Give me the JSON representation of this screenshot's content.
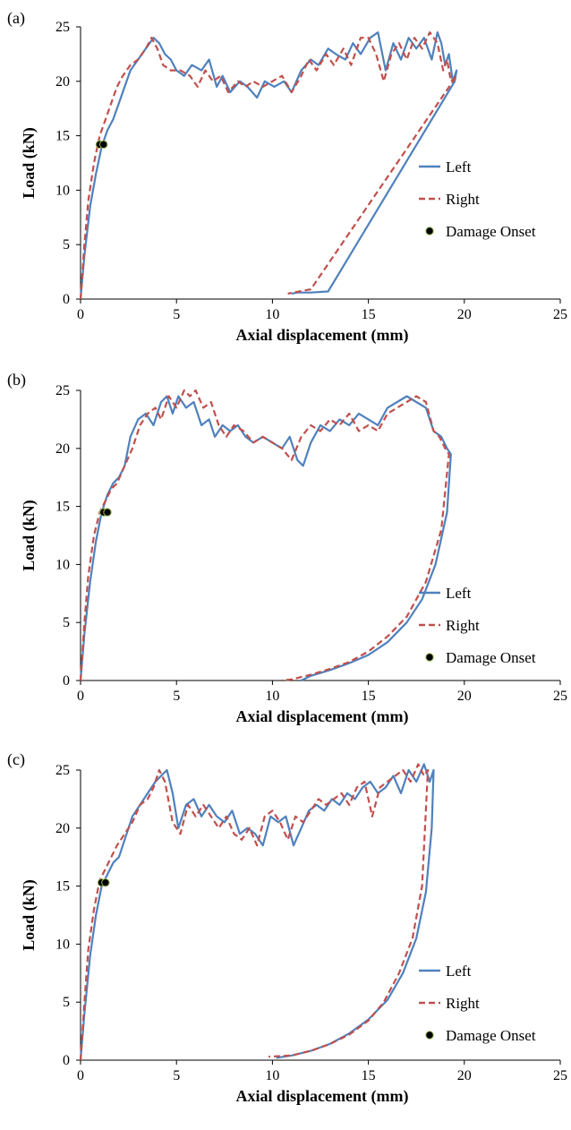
{
  "chart_data": [
    {
      "type": "line",
      "panel_label": "(a)",
      "xlabel": "Axial displacement (mm)",
      "ylabel": "Load (kN)",
      "xlim": [
        0,
        25
      ],
      "ylim": [
        0,
        25
      ],
      "xticks": [
        0,
        5,
        10,
        15,
        20,
        25
      ],
      "yticks": [
        0,
        5,
        10,
        15,
        20,
        25
      ],
      "grid": false,
      "legend_position": "right",
      "colors": {
        "left": "#4f81bd",
        "right": "#c0504d",
        "onset": "#000000"
      },
      "series": [
        {
          "name": "Left",
          "style": "solid",
          "x": [
            0.0,
            0.2,
            0.5,
            0.8,
            1.1,
            1.4,
            1.7,
            2.0,
            2.3,
            2.6,
            3.0,
            3.4,
            3.8,
            4.1,
            4.4,
            4.7,
            5.0,
            5.4,
            5.8,
            6.3,
            6.7,
            7.1,
            7.4,
            7.8,
            8.3,
            8.7,
            9.2,
            9.6,
            10.1,
            10.6,
            11.0,
            11.5,
            12.0,
            12.4,
            12.9,
            13.3,
            13.8,
            14.2,
            14.6,
            15.1,
            15.5,
            15.9,
            16.3,
            16.7,
            17.1,
            17.5,
            17.9,
            18.3,
            18.6,
            18.8,
            19.0,
            19.2,
            19.4,
            19.6,
            19.5,
            12.9,
            12.0,
            11.3,
            11.0
          ],
          "y": [
            0.0,
            4.0,
            8.5,
            11.5,
            14.0,
            15.5,
            16.5,
            18.0,
            19.5,
            21.0,
            22.0,
            23.0,
            24.0,
            23.5,
            22.5,
            22.0,
            21.0,
            20.5,
            21.5,
            21.0,
            22.0,
            19.5,
            20.5,
            19.0,
            20.0,
            19.5,
            18.5,
            20.0,
            19.5,
            20.0,
            19.0,
            21.0,
            22.0,
            21.5,
            23.0,
            22.5,
            22.0,
            23.5,
            22.5,
            24.0,
            24.5,
            21.0,
            23.5,
            22.0,
            24.0,
            23.0,
            24.0,
            22.0,
            24.5,
            23.5,
            21.5,
            22.5,
            20.0,
            21.0,
            20.0,
            0.7,
            0.6,
            0.6,
            0.5
          ]
        },
        {
          "name": "Right",
          "style": "dashed",
          "x": [
            0.0,
            0.2,
            0.4,
            0.7,
            1.0,
            1.3,
            1.6,
            1.9,
            2.2,
            2.6,
            3.0,
            3.4,
            3.7,
            4.0,
            4.3,
            4.7,
            5.2,
            5.7,
            6.1,
            6.5,
            6.9,
            7.3,
            7.7,
            8.2,
            8.6,
            9.0,
            9.5,
            10.0,
            10.5,
            11.0,
            11.5,
            11.9,
            12.3,
            12.8,
            13.2,
            13.7,
            14.1,
            14.6,
            15.0,
            15.4,
            15.8,
            16.2,
            16.6,
            17.0,
            17.4,
            17.8,
            18.2,
            18.6,
            18.9,
            19.1,
            19.3,
            19.6,
            12.0,
            11.4,
            10.8
          ],
          "y": [
            0.0,
            5.0,
            9.0,
            12.5,
            15.0,
            16.5,
            18.0,
            19.5,
            20.5,
            21.5,
            22.0,
            23.0,
            24.0,
            23.0,
            21.5,
            21.0,
            21.0,
            20.5,
            19.5,
            21.0,
            20.0,
            20.5,
            19.0,
            20.0,
            19.5,
            20.0,
            19.5,
            20.0,
            20.5,
            19.0,
            20.5,
            22.0,
            21.0,
            22.5,
            21.5,
            23.0,
            21.5,
            24.0,
            24.0,
            22.5,
            20.0,
            22.5,
            23.5,
            22.0,
            24.0,
            23.0,
            24.5,
            23.5,
            21.0,
            22.0,
            20.0,
            20.5,
            0.9,
            0.7,
            0.5
          ]
        },
        {
          "name": "Damage Onset",
          "style": "marker",
          "x": [
            1.0,
            1.2
          ],
          "y": [
            14.2,
            14.2
          ]
        }
      ]
    },
    {
      "type": "line",
      "panel_label": "(b)",
      "xlabel": "Axial displacement (mm)",
      "ylabel": "Load (kN)",
      "xlim": [
        0,
        25
      ],
      "ylim": [
        0,
        25
      ],
      "xticks": [
        0,
        5,
        10,
        15,
        20,
        25
      ],
      "yticks": [
        0,
        5,
        10,
        15,
        20,
        25
      ],
      "grid": false,
      "legend_position": "right",
      "colors": {
        "left": "#4f81bd",
        "right": "#c0504d",
        "onset": "#000000"
      },
      "series": [
        {
          "name": "Left",
          "style": "solid",
          "x": [
            0.0,
            0.2,
            0.5,
            0.8,
            1.1,
            1.4,
            1.7,
            2.0,
            2.3,
            2.6,
            3.0,
            3.4,
            3.8,
            4.2,
            4.5,
            4.8,
            5.1,
            5.5,
            5.9,
            6.3,
            6.7,
            7.0,
            7.4,
            7.8,
            8.2,
            8.6,
            9.0,
            9.5,
            10.0,
            10.5,
            10.9,
            11.3,
            11.6,
            12.0,
            12.5,
            13.0,
            13.5,
            14.0,
            14.5,
            15.0,
            15.5,
            16.0,
            16.5,
            17.0,
            17.5,
            18.0,
            18.4,
            18.8,
            19.1,
            19.3,
            19.1,
            18.5,
            17.8,
            17.0,
            16.0,
            15.0,
            14.0,
            13.0,
            12.0,
            11.5
          ],
          "y": [
            0.0,
            4.0,
            8.5,
            12.0,
            14.5,
            16.0,
            17.0,
            17.5,
            18.5,
            21.0,
            22.5,
            23.0,
            22.0,
            24.0,
            24.5,
            23.0,
            24.5,
            23.5,
            24.0,
            22.0,
            22.5,
            21.0,
            22.0,
            21.5,
            22.0,
            21.0,
            20.5,
            21.0,
            20.5,
            20.0,
            21.0,
            19.0,
            18.5,
            20.5,
            22.0,
            21.5,
            22.5,
            22.0,
            23.0,
            22.5,
            22.0,
            23.5,
            24.0,
            24.5,
            24.0,
            23.5,
            21.5,
            21.0,
            20.0,
            19.5,
            14.5,
            10.0,
            7.0,
            5.0,
            3.3,
            2.2,
            1.5,
            0.9,
            0.4,
            0.0
          ]
        },
        {
          "name": "Right",
          "style": "dashed",
          "x": [
            0.0,
            0.2,
            0.4,
            0.7,
            1.0,
            1.3,
            1.6,
            1.9,
            2.3,
            2.7,
            3.1,
            3.5,
            3.9,
            4.2,
            4.6,
            5.0,
            5.4,
            5.7,
            6.0,
            6.4,
            6.8,
            7.2,
            7.6,
            8.0,
            8.5,
            9.0,
            9.5,
            10.0,
            10.5,
            11.0,
            11.5,
            12.0,
            12.5,
            13.0,
            13.5,
            14.0,
            14.5,
            15.0,
            15.5,
            16.0,
            16.5,
            17.0,
            17.5,
            18.0,
            18.4,
            18.7,
            19.0,
            19.2,
            18.8,
            18.0,
            17.0,
            16.0,
            15.0,
            14.0,
            13.0,
            12.0,
            11.0,
            10.5
          ],
          "y": [
            0.0,
            5.0,
            9.0,
            12.5,
            14.5,
            15.5,
            16.5,
            17.0,
            18.5,
            20.0,
            22.0,
            23.0,
            23.5,
            22.5,
            24.5,
            23.5,
            25.0,
            24.5,
            25.0,
            23.5,
            24.0,
            22.0,
            21.0,
            22.0,
            21.5,
            20.5,
            21.0,
            20.5,
            20.0,
            19.0,
            21.0,
            22.0,
            21.5,
            22.5,
            22.0,
            23.0,
            21.5,
            22.0,
            21.5,
            23.0,
            23.5,
            24.0,
            24.5,
            24.0,
            21.5,
            21.0,
            20.0,
            19.5,
            13.0,
            8.5,
            5.5,
            3.8,
            2.5,
            1.6,
            1.0,
            0.5,
            0.1,
            0.0
          ]
        },
        {
          "name": "Damage Onset",
          "style": "marker",
          "x": [
            1.2,
            1.4
          ],
          "y": [
            14.5,
            14.5
          ]
        }
      ]
    },
    {
      "type": "line",
      "panel_label": "(c)",
      "xlabel": "Axial displacement (mm)",
      "ylabel": "Load (kN)",
      "xlim": [
        0,
        25
      ],
      "ylim": [
        0,
        25
      ],
      "xticks": [
        0,
        5,
        10,
        15,
        20,
        25
      ],
      "yticks": [
        0,
        5,
        10,
        15,
        20,
        25
      ],
      "grid": false,
      "legend_position": "right",
      "colors": {
        "left": "#4f81bd",
        "right": "#c0504d",
        "onset": "#000000"
      },
      "series": [
        {
          "name": "Left",
          "style": "solid",
          "x": [
            0.0,
            0.2,
            0.5,
            0.8,
            1.1,
            1.4,
            1.7,
            2.0,
            2.3,
            2.7,
            3.1,
            3.5,
            3.9,
            4.2,
            4.5,
            4.8,
            5.1,
            5.5,
            5.9,
            6.3,
            6.7,
            7.1,
            7.5,
            7.9,
            8.3,
            8.7,
            9.1,
            9.5,
            9.9,
            10.3,
            10.7,
            11.1,
            11.5,
            11.9,
            12.3,
            12.7,
            13.1,
            13.5,
            13.9,
            14.3,
            14.7,
            15.1,
            15.5,
            15.9,
            16.3,
            16.7,
            17.1,
            17.5,
            17.9,
            18.2,
            18.4,
            18.3,
            18.0,
            17.5,
            16.8,
            16.0,
            15.0,
            14.0,
            13.0,
            12.0,
            11.0,
            10.2
          ],
          "y": [
            0.0,
            4.0,
            9.0,
            12.5,
            15.0,
            16.0,
            17.0,
            17.5,
            19.0,
            21.0,
            22.0,
            23.0,
            24.0,
            24.5,
            25.0,
            23.0,
            20.0,
            22.0,
            22.5,
            21.0,
            22.0,
            21.0,
            20.5,
            21.5,
            19.5,
            20.0,
            19.5,
            18.5,
            21.0,
            20.5,
            21.0,
            18.5,
            20.0,
            21.5,
            22.0,
            21.5,
            22.5,
            22.0,
            23.0,
            22.5,
            23.5,
            24.0,
            23.0,
            23.5,
            24.5,
            23.0,
            25.0,
            24.0,
            25.5,
            24.0,
            25.0,
            20.0,
            14.5,
            10.5,
            7.5,
            5.2,
            3.5,
            2.3,
            1.4,
            0.8,
            0.4,
            0.2
          ]
        },
        {
          "name": "Right",
          "style": "dashed",
          "x": [
            0.0,
            0.2,
            0.4,
            0.7,
            1.0,
            1.3,
            1.6,
            1.9,
            2.3,
            2.7,
            3.1,
            3.5,
            3.8,
            4.1,
            4.4,
            4.8,
            5.2,
            5.6,
            6.0,
            6.4,
            6.8,
            7.2,
            7.6,
            8.0,
            8.4,
            8.8,
            9.2,
            9.6,
            10.0,
            10.4,
            10.8,
            11.2,
            11.6,
            12.0,
            12.4,
            12.8,
            13.2,
            13.6,
            14.0,
            14.4,
            14.8,
            15.2,
            15.6,
            16.0,
            16.4,
            16.8,
            17.2,
            17.6,
            17.9,
            18.1,
            17.8,
            17.3,
            16.6,
            15.8,
            15.0,
            14.0,
            13.0,
            12.0,
            11.0,
            9.8
          ],
          "y": [
            0.0,
            5.0,
            9.5,
            13.0,
            15.5,
            16.5,
            17.5,
            18.5,
            19.5,
            20.5,
            22.0,
            22.5,
            23.5,
            25.0,
            24.0,
            20.5,
            19.5,
            22.0,
            21.0,
            22.0,
            21.0,
            20.0,
            21.0,
            19.5,
            19.0,
            20.0,
            18.5,
            21.0,
            21.5,
            20.5,
            19.0,
            21.0,
            20.5,
            21.5,
            22.5,
            22.0,
            22.5,
            23.0,
            22.0,
            23.5,
            24.0,
            21.0,
            23.5,
            24.0,
            24.5,
            25.0,
            24.0,
            25.5,
            24.5,
            25.0,
            15.0,
            10.5,
            7.5,
            5.0,
            3.4,
            2.2,
            1.4,
            0.8,
            0.4,
            0.3
          ]
        },
        {
          "name": "Damage Onset",
          "style": "marker",
          "x": [
            1.1,
            1.3
          ],
          "y": [
            15.3,
            15.3
          ]
        }
      ]
    }
  ]
}
